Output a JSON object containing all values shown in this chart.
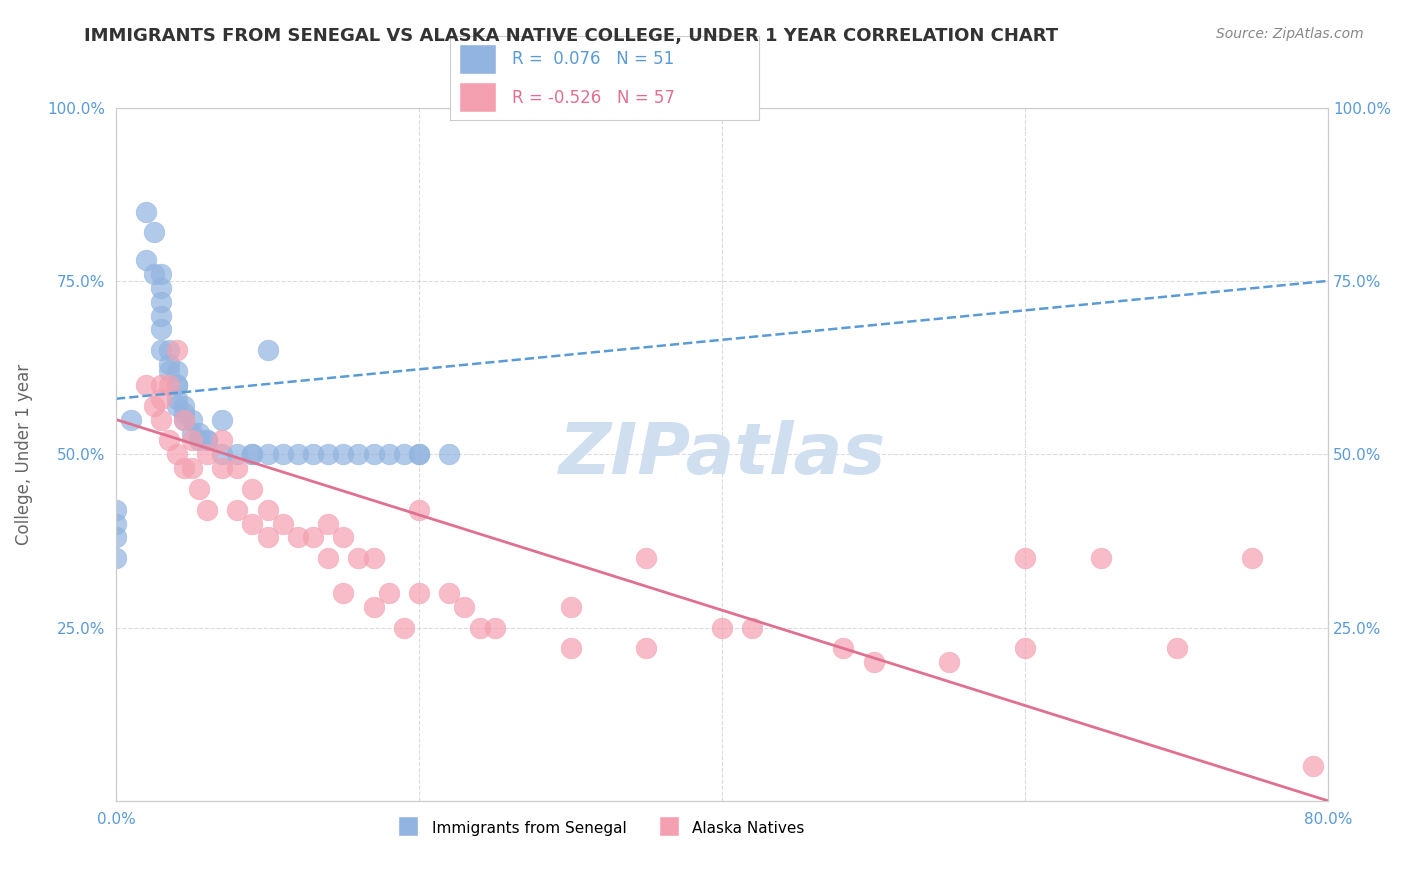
{
  "title": "IMMIGRANTS FROM SENEGAL VS ALASKA NATIVE COLLEGE, UNDER 1 YEAR CORRELATION CHART",
  "source": "Source: ZipAtlas.com",
  "xlabel": "",
  "ylabel": "College, Under 1 year",
  "xmin": 0.0,
  "xmax": 0.8,
  "ymin": 0.0,
  "ymax": 1.0,
  "xticks": [
    0.0,
    0.2,
    0.4,
    0.6,
    0.8
  ],
  "xtick_labels": [
    "0.0%",
    "",
    "",
    "",
    "80.0%"
  ],
  "yticks": [
    0.0,
    0.25,
    0.5,
    0.75,
    1.0
  ],
  "ytick_labels": [
    "",
    "25.0%",
    "50.0%",
    "75.0%",
    "100.0%"
  ],
  "blue_R": 0.076,
  "blue_N": 51,
  "pink_R": -0.526,
  "pink_N": 57,
  "blue_color": "#92b4e0",
  "pink_color": "#f4a0b0",
  "blue_label": "Immigrants from Senegal",
  "pink_label": "Alaska Natives",
  "watermark": "ZIPatlas",
  "blue_scatter_x": [
    0.02,
    0.02,
    0.025,
    0.025,
    0.03,
    0.03,
    0.03,
    0.03,
    0.03,
    0.03,
    0.035,
    0.035,
    0.035,
    0.04,
    0.04,
    0.04,
    0.04,
    0.04,
    0.045,
    0.045,
    0.045,
    0.05,
    0.05,
    0.055,
    0.055,
    0.06,
    0.06,
    0.07,
    0.07,
    0.08,
    0.09,
    0.09,
    0.1,
    0.1,
    0.11,
    0.12,
    0.13,
    0.14,
    0.15,
    0.16,
    0.17,
    0.18,
    0.19,
    0.2,
    0.2,
    0.22,
    0.0,
    0.0,
    0.0,
    0.0,
    0.01
  ],
  "blue_scatter_y": [
    0.85,
    0.78,
    0.82,
    0.76,
    0.76,
    0.74,
    0.72,
    0.7,
    0.68,
    0.65,
    0.65,
    0.63,
    0.62,
    0.62,
    0.6,
    0.6,
    0.58,
    0.57,
    0.57,
    0.56,
    0.55,
    0.55,
    0.53,
    0.53,
    0.52,
    0.52,
    0.52,
    0.55,
    0.5,
    0.5,
    0.5,
    0.5,
    0.65,
    0.5,
    0.5,
    0.5,
    0.5,
    0.5,
    0.5,
    0.5,
    0.5,
    0.5,
    0.5,
    0.5,
    0.5,
    0.5,
    0.42,
    0.4,
    0.38,
    0.35,
    0.55
  ],
  "pink_scatter_x": [
    0.02,
    0.025,
    0.03,
    0.03,
    0.03,
    0.035,
    0.035,
    0.04,
    0.04,
    0.045,
    0.045,
    0.05,
    0.05,
    0.055,
    0.06,
    0.06,
    0.07,
    0.07,
    0.08,
    0.08,
    0.09,
    0.09,
    0.1,
    0.1,
    0.11,
    0.12,
    0.13,
    0.14,
    0.14,
    0.15,
    0.15,
    0.16,
    0.17,
    0.17,
    0.18,
    0.19,
    0.2,
    0.2,
    0.22,
    0.23,
    0.24,
    0.25,
    0.3,
    0.3,
    0.35,
    0.35,
    0.4,
    0.42,
    0.48,
    0.5,
    0.55,
    0.6,
    0.6,
    0.65,
    0.7,
    0.75,
    0.79
  ],
  "pink_scatter_y": [
    0.6,
    0.57,
    0.6,
    0.58,
    0.55,
    0.6,
    0.52,
    0.65,
    0.5,
    0.55,
    0.48,
    0.52,
    0.48,
    0.45,
    0.5,
    0.42,
    0.52,
    0.48,
    0.48,
    0.42,
    0.45,
    0.4,
    0.42,
    0.38,
    0.4,
    0.38,
    0.38,
    0.4,
    0.35,
    0.38,
    0.3,
    0.35,
    0.35,
    0.28,
    0.3,
    0.25,
    0.42,
    0.3,
    0.3,
    0.28,
    0.25,
    0.25,
    0.28,
    0.22,
    0.35,
    0.22,
    0.25,
    0.25,
    0.22,
    0.2,
    0.2,
    0.35,
    0.22,
    0.35,
    0.22,
    0.35,
    0.05
  ],
  "blue_line_x": [
    0.0,
    0.8
  ],
  "blue_line_y_start": 0.58,
  "blue_line_y_end": 0.75,
  "pink_line_x": [
    0.0,
    0.8
  ],
  "pink_line_y_start": 0.55,
  "pink_line_y_end": 0.0,
  "grid_color": "#cccccc",
  "axis_color": "#cccccc",
  "title_color": "#333333",
  "tick_color": "#5b9bd5",
  "ylabel_color": "#666666",
  "watermark_color": "#d0dff0",
  "legend_border_color": "#cccccc",
  "legend_R_color": "#5b9bd5",
  "trend_blue_color": "#5b9bd5",
  "trend_pink_color": "#e07090"
}
